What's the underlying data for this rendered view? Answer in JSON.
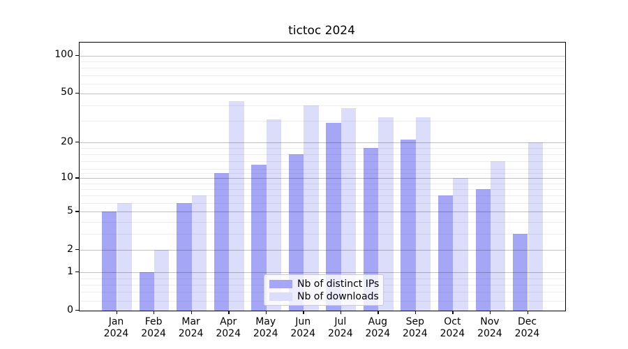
{
  "chart_data": {
    "type": "bar",
    "title": "tictoc 2024",
    "categories": [
      "Jan",
      "Feb",
      "Mar",
      "Apr",
      "May",
      "Jun",
      "Jul",
      "Aug",
      "Sep",
      "Oct",
      "Nov",
      "Dec"
    ],
    "year_label": "2024",
    "series": [
      {
        "name": "Nb of distinct IPs",
        "color": "#a6a6f7",
        "values": [
          5,
          1,
          6,
          11,
          13,
          16,
          29,
          18,
          21,
          7,
          8,
          3
        ]
      },
      {
        "name": "Nb of downloads",
        "color": "#dcdcfb",
        "values": [
          6,
          2,
          7,
          43,
          31,
          40,
          38,
          32,
          32,
          10,
          14,
          20
        ]
      }
    ],
    "xlabel": "",
    "ylabel": "",
    "yscale": "log1p",
    "ylim": [
      0,
      127
    ],
    "yticks": [
      0,
      1,
      2,
      5,
      10,
      20,
      50,
      100
    ],
    "ytick_labels": [
      "0",
      "1",
      "2",
      "5",
      "10",
      "20",
      "50",
      "100"
    ],
    "minor_gridlines": [
      0.2,
      0.4,
      0.6,
      0.8,
      3,
      4,
      6,
      7,
      8,
      9,
      11,
      12,
      14,
      16,
      18,
      30,
      40,
      60,
      70,
      80,
      90
    ],
    "grid": true,
    "legend_position": "lower center",
    "colors": {
      "axis": "#000000",
      "major_grid": "#c3c3c3",
      "minor_grid": "#efefef",
      "background": "#ffffff"
    }
  }
}
